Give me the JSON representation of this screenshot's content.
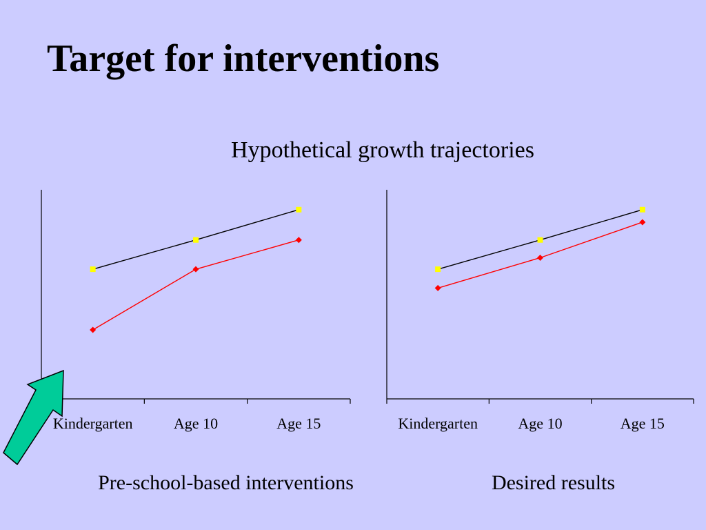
{
  "slide": {
    "title": "Target for interventions",
    "subtitle": "Hypothetical growth trajectories"
  },
  "colors": {
    "background": "#ccccff",
    "upper_line": "#000000",
    "upper_marker": "#ffff00",
    "lower_line": "#ff0000",
    "lower_marker": "#ff0000",
    "arrow_fill": "#00cc99"
  },
  "chart_data": [
    {
      "type": "line",
      "categories": [
        "Kindergarten",
        "Age 10",
        "Age 15"
      ],
      "series": [
        {
          "values": [
            62,
            76,
            90.5
          ],
          "color": "#000000",
          "marker_color": "#ffff00",
          "marker": "square"
        },
        {
          "values": [
            33,
            62,
            76
          ],
          "color": "#ff0000",
          "marker_color": "#ff0000",
          "marker": "diamond"
        }
      ],
      "ylim": [
        0,
        100
      ],
      "grid": false,
      "legend": false,
      "caption": "Pre-school-based interventions",
      "annotation": "green-arrow-pointing-to-origin"
    },
    {
      "type": "line",
      "categories": [
        "Kindergarten",
        "Age 10",
        "Age 15"
      ],
      "series": [
        {
          "values": [
            62,
            76,
            90.5
          ],
          "color": "#000000",
          "marker_color": "#ffff00",
          "marker": "square"
        },
        {
          "values": [
            53,
            67.5,
            84.5
          ],
          "color": "#ff0000",
          "marker_color": "#ff0000",
          "marker": "diamond"
        }
      ],
      "ylim": [
        0,
        100
      ],
      "grid": false,
      "legend": false,
      "caption": "Desired results"
    }
  ]
}
